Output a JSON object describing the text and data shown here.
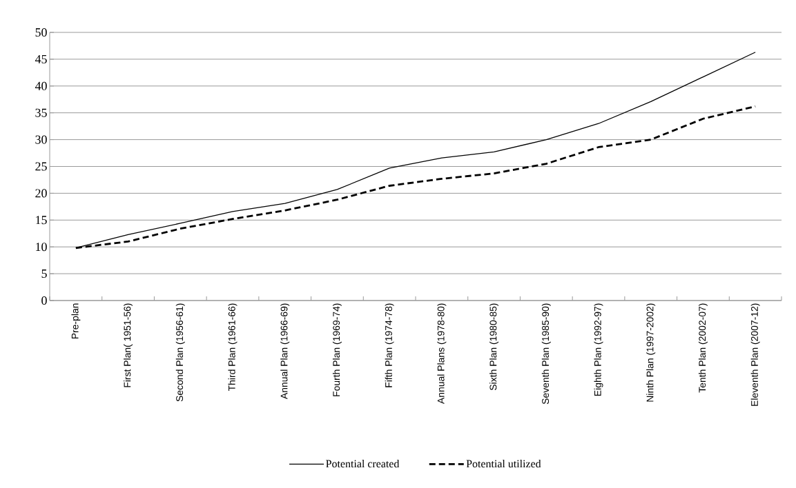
{
  "chart_data": {
    "type": "line",
    "categories": [
      "Pre-plan",
      "First Plan( 1951-56)",
      "Second Plan (1956-61)",
      "Third Plan (1961-66)",
      "Annual Plan (1966-69)",
      "Fourth Plan (1969-74)",
      "Fifth Plan (1974-78)",
      "Annual Plans (1978-80)",
      "Sixth Plan (1980-85)",
      "Seventh Plan (1985-90)",
      "Eighth Plan (1992-97)",
      "Ninth Plan (1997-2002)",
      "Tenth Plan (2002-07)",
      "Eleventh Plan (2007-12)"
    ],
    "series": [
      {
        "name": "Potential created",
        "color": "#000000",
        "line_style": "solid",
        "values": [
          9.8,
          12.3,
          14.4,
          16.6,
          18.1,
          20.7,
          24.7,
          26.6,
          27.7,
          30.0,
          33.0,
          37.1,
          41.7,
          46.3
        ]
      },
      {
        "name": "Potential utilized",
        "color": "#000000",
        "line_style": "dashed",
        "values": [
          9.8,
          11.0,
          13.4,
          15.2,
          16.8,
          18.8,
          21.4,
          22.7,
          23.7,
          25.5,
          28.6,
          30.0,
          33.9,
          36.2
        ]
      }
    ],
    "ylim": [
      0,
      50
    ],
    "yticks": [
      0,
      5,
      10,
      15,
      20,
      25,
      30,
      35,
      40,
      45,
      50
    ],
    "grid": "y",
    "legend": "bottom",
    "marker": "none"
  }
}
